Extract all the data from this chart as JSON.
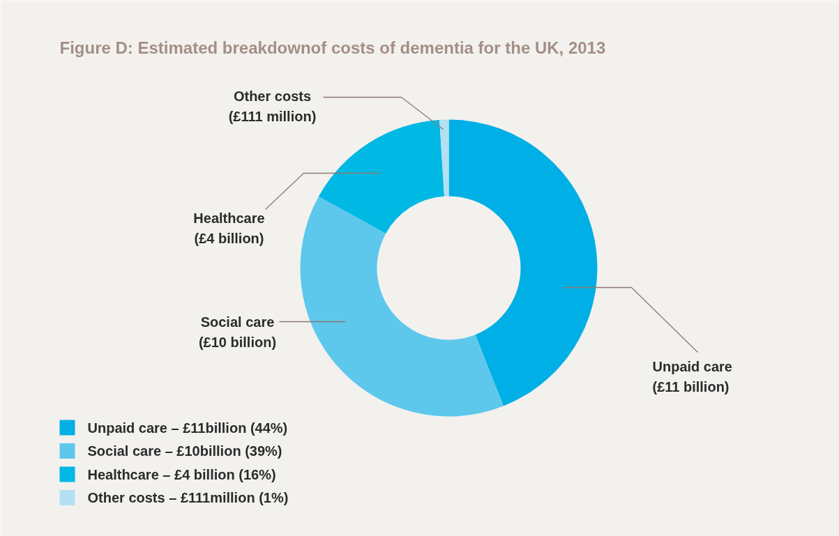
{
  "chart_data": {
    "type": "donut",
    "title": "Figure D: Estimated breakdownof costs of dementia for the UK, 2013",
    "categories": [
      "Unpaid care – £11billion (44%)",
      "Social care – £10billion (39%)",
      "Healthcare – £4 billion (16%)",
      "Other costs – £111million (1%)"
    ],
    "values": [
      44,
      39,
      16,
      1
    ],
    "colors": [
      "#00afe5",
      "#5ec8ec",
      "#00b8e4",
      "#b3e0f3"
    ],
    "annotations": [
      "Unpaid care\n(£11 billion)",
      "Social care\n(£10 billion)",
      "Healthcare\n(£4 billion)",
      "Other costs\n(£111 million)"
    ],
    "legend": "bottom left"
  }
}
